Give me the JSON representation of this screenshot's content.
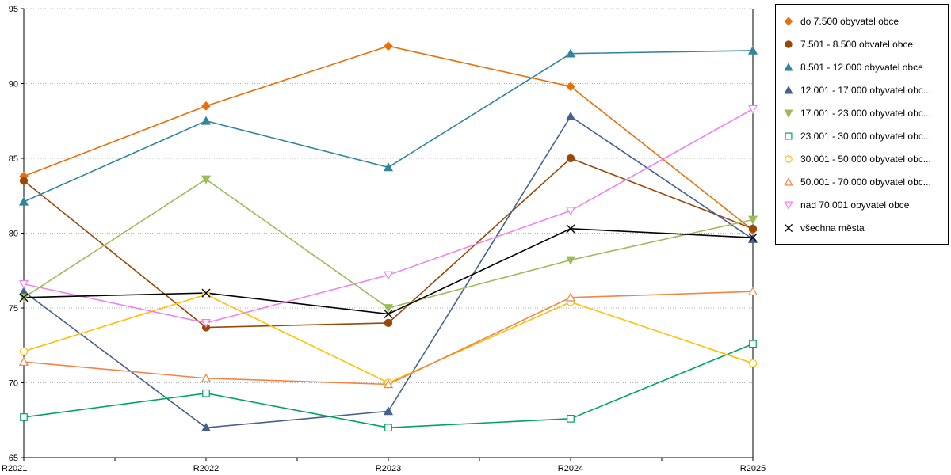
{
  "chart_data": {
    "type": "line",
    "title": "",
    "xlabel": "",
    "ylabel": "",
    "categories": [
      "R2021",
      "R2022",
      "R2023",
      "R2024",
      "R2025"
    ],
    "ylim": [
      65,
      95
    ],
    "ytick_step": 5,
    "y_tick_labels": [
      "65",
      "70",
      "75",
      "80",
      "85",
      "90",
      "95"
    ],
    "grid": "horizontal-dotted",
    "grid_color": "#b0b0b0",
    "axis_color": "#000000",
    "background": "#ffffff",
    "legend_position": "right",
    "series": [
      {
        "name": "do 7.500 obyvatel obce",
        "color": "#e8700a",
        "marker": "diamond",
        "filled": true,
        "values": [
          83.8,
          88.5,
          92.5,
          89.8,
          80.2
        ]
      },
      {
        "name": "7.501 - 8.500 obvatel obce",
        "color": "#984807",
        "marker": "circle",
        "filled": true,
        "values": [
          83.5,
          73.7,
          74.0,
          85.0,
          80.3
        ]
      },
      {
        "name": "8.501 - 12.000 obyvatel obce",
        "color": "#31859c",
        "marker": "triangle-up",
        "filled": true,
        "values": [
          82.1,
          87.5,
          84.4,
          92.0,
          92.2
        ]
      },
      {
        "name": "12.001 - 17.000 obyvatel obc...",
        "color": "#46618c",
        "marker": "triangle-up",
        "filled": true,
        "values": [
          76.1,
          67.0,
          68.1,
          87.8,
          79.6
        ]
      },
      {
        "name": "17.001 - 23.000 obyvatel obc...",
        "color": "#9bbb59",
        "marker": "triangle-down",
        "filled": true,
        "values": [
          75.7,
          83.6,
          75.0,
          78.2,
          80.9
        ]
      },
      {
        "name": "23.001 - 30.000 obyvatel obc...",
        "color": "#00a45f",
        "marker": "square",
        "filled": false,
        "values": [
          67.7,
          69.3,
          67.0,
          67.6,
          72.6
        ]
      },
      {
        "name": "30.001 - 50.000 obyvatel obc...",
        "color": "#ffc000",
        "marker": "circle",
        "filled": false,
        "values": [
          72.1,
          75.9,
          70.0,
          75.4,
          71.3
        ]
      },
      {
        "name": "50.001 - 70.000 obyvatel obc...",
        "color": "#f28544",
        "marker": "triangle-up",
        "filled": false,
        "values": [
          71.4,
          70.3,
          69.9,
          75.7,
          76.1
        ]
      },
      {
        "name": "nad 70.001 obyvatel obce",
        "color": "#ee82ee",
        "marker": "triangle-down",
        "filled": false,
        "values": [
          76.6,
          74.0,
          77.2,
          81.5,
          88.3
        ]
      },
      {
        "name": "všechna města",
        "color": "#000000",
        "marker": "x",
        "filled": false,
        "values": [
          75.7,
          76.0,
          74.6,
          80.3,
          79.7
        ]
      }
    ]
  }
}
